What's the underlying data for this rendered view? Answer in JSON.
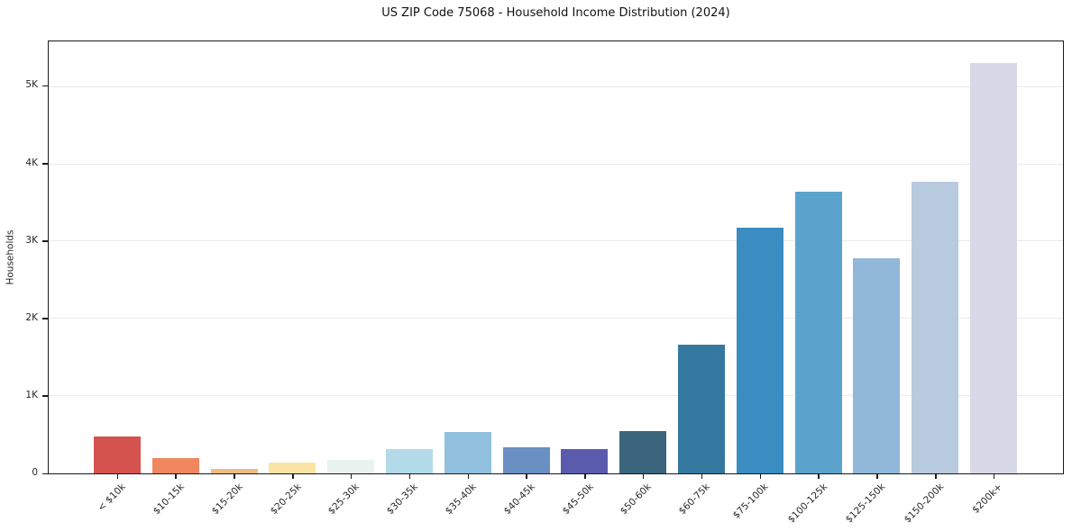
{
  "chart_data": {
    "type": "bar",
    "title": "US ZIP Code 75068 - Household Income Distribution (2024)",
    "xlabel": "",
    "ylabel": "Households",
    "categories": [
      "< $10k",
      "$10-15k",
      "$15-20k",
      "$20-25k",
      "$25-30k",
      "$30-35k",
      "$35-40k",
      "$40-45k",
      "$45-50k",
      "$50-60k",
      "$60-75k",
      "$75-100k",
      "$100-125k",
      "$125-150k",
      "$150-200k",
      "$200k+"
    ],
    "values": [
      480,
      195,
      60,
      140,
      170,
      310,
      535,
      335,
      320,
      545,
      1665,
      3180,
      3645,
      2780,
      3770,
      5310
    ],
    "bar_colors": [
      "#d5534f",
      "#f0875f",
      "#f0bb84",
      "#fae3a3",
      "#e9f3f0",
      "#b3dae8",
      "#90c0dd",
      "#6a8fc3",
      "#5a5bad",
      "#3a657d",
      "#35789f",
      "#3a8cc1",
      "#5ba3cc",
      "#91b7d9",
      "#b8cade",
      "#d8d9e7"
    ],
    "ylim": [
      0,
      5580
    ],
    "yticks": [
      {
        "v": 0,
        "label": "0"
      },
      {
        "v": 1000,
        "label": "1K"
      },
      {
        "v": 2000,
        "label": "2K"
      },
      {
        "v": 3000,
        "label": "3K"
      },
      {
        "v": 4000,
        "label": "4K"
      },
      {
        "v": 5000,
        "label": "5K"
      }
    ],
    "grid": "horizontal-light",
    "legend": "none",
    "colors": {
      "spine": "#1a1a1a",
      "gridline": "#ebebeb",
      "text": "#262626",
      "background": "#ffffff"
    }
  }
}
